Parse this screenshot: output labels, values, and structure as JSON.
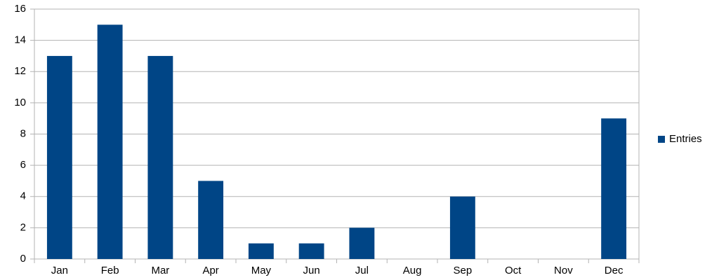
{
  "chart_data": {
    "type": "bar",
    "categories": [
      "Jan",
      "Feb",
      "Mar",
      "Apr",
      "May",
      "Jun",
      "Jul",
      "Aug",
      "Sep",
      "Oct",
      "Nov",
      "Dec"
    ],
    "series": [
      {
        "name": "Entries",
        "color": "#004586",
        "values": [
          13,
          15,
          13,
          5,
          1,
          1,
          2,
          0,
          4,
          0,
          0,
          9
        ]
      }
    ],
    "ylim": [
      0,
      16
    ],
    "yticks": [
      0,
      2,
      4,
      6,
      8,
      10,
      12,
      14,
      16
    ],
    "grid": true,
    "legend": "right"
  }
}
